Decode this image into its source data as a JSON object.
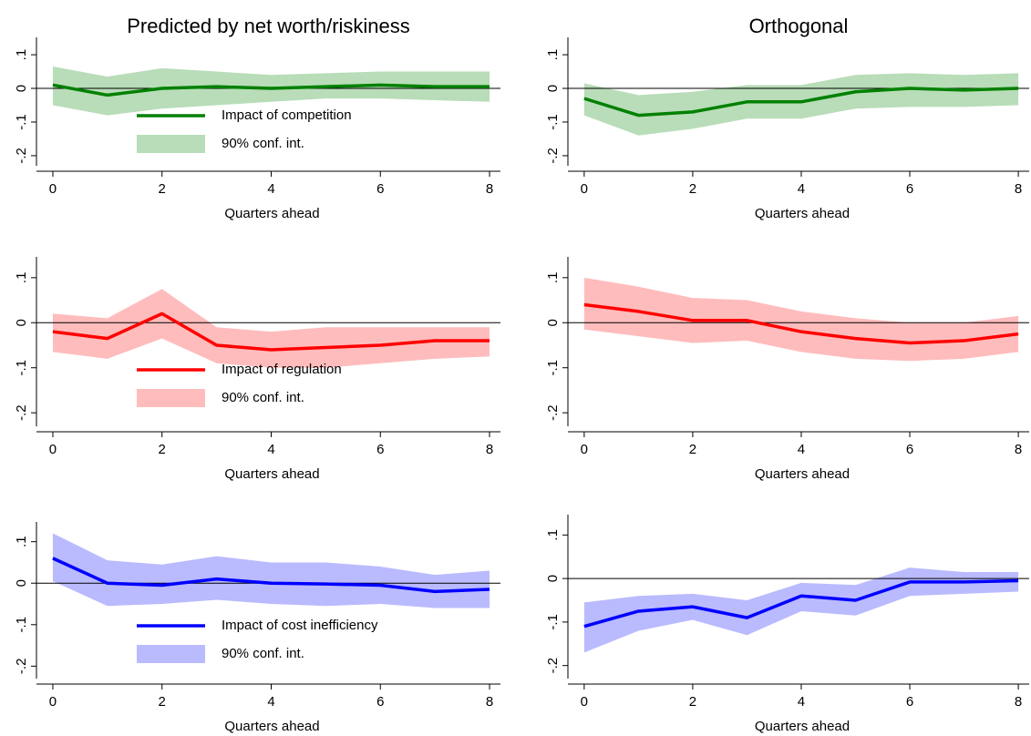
{
  "chart_data": [
    {
      "type": "line",
      "title": "Predicted by net worth/riskiness",
      "xlabel": "Quarters ahead",
      "x": [
        0,
        1,
        2,
        3,
        4,
        5,
        6,
        7,
        8
      ],
      "xlim": [
        -0.3,
        8.2
      ],
      "xticks": [
        0,
        2,
        4,
        6,
        8
      ],
      "ylim": [
        -0.23,
        0.13
      ],
      "yticks": [
        {
          "value": 0.1,
          "label": ".1"
        },
        0,
        {
          "value": -0.1,
          "label": "-.1"
        },
        {
          "value": -0.2,
          "label": "-.2"
        }
      ],
      "hline": 0,
      "series": [
        {
          "name": "Impact of competition",
          "color": "#008000",
          "values": [
            0.01,
            -0.02,
            0,
            0.005,
            0,
            0.005,
            0.01,
            0.005,
            0.005
          ]
        },
        {
          "name": "90% conf. int.",
          "color": "#b8ddb8",
          "lower": [
            -0.05,
            -0.08,
            -0.06,
            -0.05,
            -0.04,
            -0.03,
            -0.03,
            -0.035,
            -0.04
          ],
          "upper": [
            0.065,
            0.035,
            0.06,
            0.05,
            0.04,
            0.045,
            0.05,
            0.05,
            0.05
          ]
        }
      ]
    },
    {
      "type": "line",
      "title": "Orthogonal",
      "xlabel": "Quarters ahead",
      "x": [
        0,
        1,
        2,
        3,
        4,
        5,
        6,
        7,
        8
      ],
      "xlim": [
        -0.3,
        8.2
      ],
      "xticks": [
        0,
        2,
        4,
        6,
        8
      ],
      "ylim": [
        -0.23,
        0.13
      ],
      "yticks": [
        {
          "value": 0.1,
          "label": ".1"
        },
        0,
        {
          "value": -0.1,
          "label": "-.1"
        },
        {
          "value": -0.2,
          "label": "-.2"
        }
      ],
      "hline": 0,
      "series": [
        {
          "color": "#008000",
          "values": [
            -0.03,
            -0.08,
            -0.07,
            -0.04,
            -0.04,
            -0.01,
            0,
            -0.005,
            0
          ]
        },
        {
          "color": "#b8ddb8",
          "lower": [
            -0.08,
            -0.14,
            -0.12,
            -0.09,
            -0.09,
            -0.06,
            -0.055,
            -0.055,
            -0.05
          ],
          "upper": [
            0.015,
            -0.02,
            -0.01,
            0.01,
            0.01,
            0.04,
            0.045,
            0.04,
            0.045
          ]
        }
      ]
    },
    {
      "type": "line",
      "xlabel": "Quarters ahead",
      "x": [
        0,
        1,
        2,
        3,
        4,
        5,
        6,
        7,
        8
      ],
      "xlim": [
        -0.3,
        8.2
      ],
      "xticks": [
        0,
        2,
        4,
        6,
        8
      ],
      "ylim": [
        -0.23,
        0.13
      ],
      "yticks": [
        {
          "value": 0.1,
          "label": ".1"
        },
        0,
        {
          "value": -0.1,
          "label": "-.1"
        },
        {
          "value": -0.2,
          "label": "-.2"
        }
      ],
      "hline": 0,
      "series": [
        {
          "name": "Impact of regulation",
          "color": "#ff0000",
          "values": [
            -0.02,
            -0.035,
            0.02,
            -0.05,
            -0.06,
            -0.055,
            -0.05,
            -0.04,
            -0.04
          ]
        },
        {
          "name": "90% conf. int.",
          "color": "#ffbcbc",
          "lower": [
            -0.065,
            -0.08,
            -0.035,
            -0.09,
            -0.1,
            -0.1,
            -0.09,
            -0.08,
            -0.075
          ],
          "upper": [
            0.02,
            0.01,
            0.075,
            -0.01,
            -0.02,
            -0.01,
            -0.01,
            -0.01,
            -0.01
          ]
        }
      ]
    },
    {
      "type": "line",
      "xlabel": "Quarters ahead",
      "x": [
        0,
        1,
        2,
        3,
        4,
        5,
        6,
        7,
        8
      ],
      "xlim": [
        -0.3,
        8.2
      ],
      "xticks": [
        0,
        2,
        4,
        6,
        8
      ],
      "ylim": [
        -0.23,
        0.13
      ],
      "yticks": [
        {
          "value": 0.1,
          "label": ".1"
        },
        0,
        {
          "value": -0.1,
          "label": "-.1"
        },
        {
          "value": -0.2,
          "label": "-.2"
        }
      ],
      "hline": 0,
      "series": [
        {
          "color": "#ff0000",
          "values": [
            0.04,
            0.025,
            0.005,
            0.005,
            -0.02,
            -0.035,
            -0.045,
            -0.04,
            -0.025
          ]
        },
        {
          "color": "#ffbcbc",
          "lower": [
            -0.015,
            -0.03,
            -0.045,
            -0.04,
            -0.065,
            -0.08,
            -0.085,
            -0.08,
            -0.065
          ],
          "upper": [
            0.1,
            0.08,
            0.055,
            0.05,
            0.025,
            0.01,
            0,
            0,
            0.015
          ]
        }
      ]
    },
    {
      "type": "line",
      "xlabel": "Quarters ahead",
      "x": [
        0,
        1,
        2,
        3,
        4,
        5,
        6,
        7,
        8
      ],
      "xlim": [
        -0.3,
        8.2
      ],
      "xticks": [
        0,
        2,
        4,
        6,
        8
      ],
      "ylim": [
        -0.23,
        0.13
      ],
      "yticks": [
        {
          "value": 0.1,
          "label": ".1"
        },
        0,
        {
          "value": -0.1,
          "label": "-.1"
        },
        {
          "value": -0.2,
          "label": "-.2"
        }
      ],
      "hline": 0,
      "series": [
        {
          "name": "Impact of cost inefficiency",
          "color": "#0000ff",
          "values": [
            0.06,
            0,
            -0.005,
            0.01,
            0,
            -0.002,
            -0.005,
            -0.02,
            -0.015
          ]
        },
        {
          "name": "90% conf. int.",
          "color": "#babaff",
          "lower": [
            0.005,
            -0.055,
            -0.05,
            -0.04,
            -0.05,
            -0.055,
            -0.05,
            -0.06,
            -0.06
          ],
          "upper": [
            0.12,
            0.055,
            0.045,
            0.065,
            0.05,
            0.05,
            0.04,
            0.02,
            0.03
          ]
        }
      ]
    },
    {
      "type": "line",
      "xlabel": "Quarters ahead",
      "x": [
        0,
        1,
        2,
        3,
        4,
        5,
        6,
        7,
        8
      ],
      "xlim": [
        -0.3,
        8.2
      ],
      "xticks": [
        0,
        2,
        4,
        6,
        8
      ],
      "ylim": [
        -0.23,
        0.13
      ],
      "yticks": [
        {
          "value": 0.1,
          "label": ".1"
        },
        0,
        {
          "value": -0.1,
          "label": "-.1"
        },
        {
          "value": -0.2,
          "label": "-.2"
        }
      ],
      "hline": 0,
      "series": [
        {
          "color": "#0000ff",
          "values": [
            -0.11,
            -0.075,
            -0.065,
            -0.09,
            -0.04,
            -0.05,
            -0.008,
            -0.008,
            -0.005
          ]
        },
        {
          "color": "#babaff",
          "lower": [
            -0.17,
            -0.12,
            -0.095,
            -0.13,
            -0.075,
            -0.085,
            -0.04,
            -0.035,
            -0.03
          ],
          "upper": [
            -0.055,
            -0.04,
            -0.035,
            -0.05,
            -0.01,
            -0.015,
            0.025,
            0.015,
            0.015
          ]
        }
      ]
    }
  ]
}
